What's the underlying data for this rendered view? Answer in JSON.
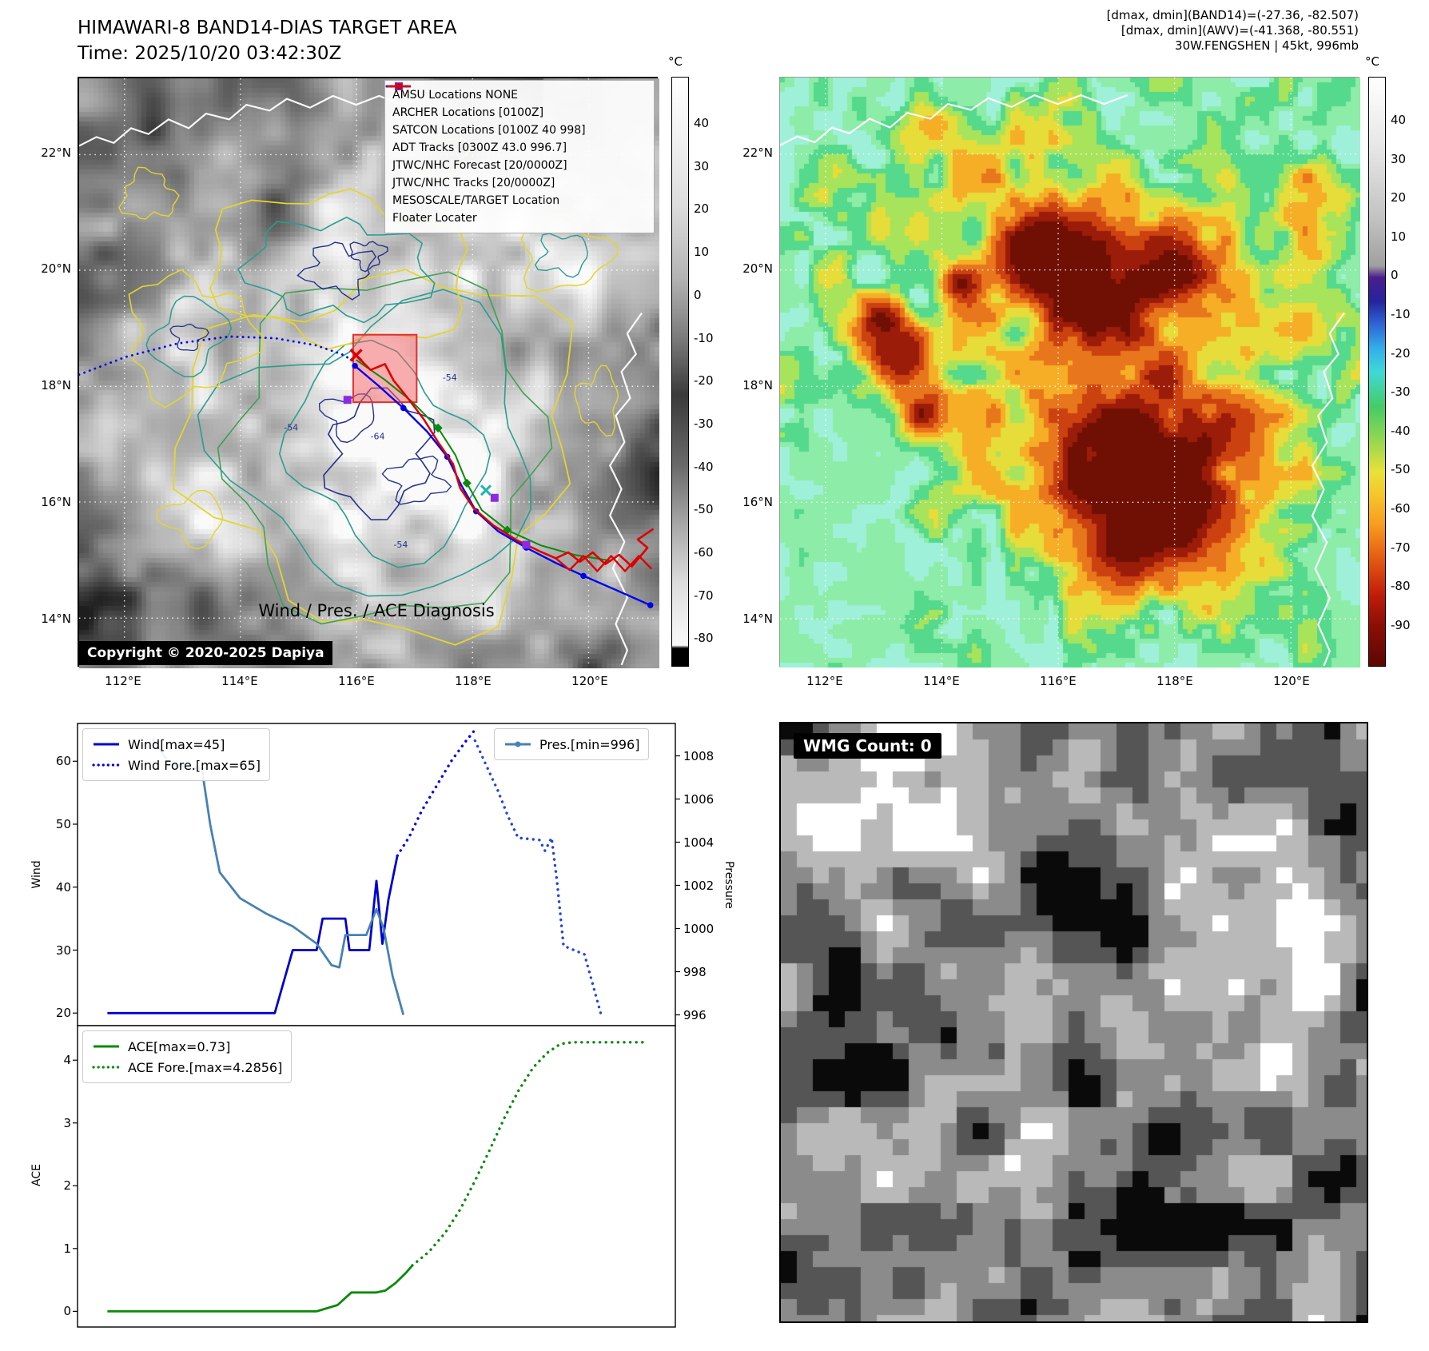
{
  "header": {
    "title": "HIMAWARI-8 BAND14-DIAS TARGET AREA",
    "time_line": "Time: 2025/10/20 03:42:30Z",
    "info_line1": "[dmax, dmin](BAND14)=(-27.36, -82.507)",
    "info_line2": "[dmax, dmin](AWV)=(-41.368, -80.551)",
    "info_line3": "30W.FENGSHEN | 45kt, 996mb"
  },
  "map_left": {
    "legend_items": [
      {
        "label": "AMSU Locations NONE",
        "marker": "square",
        "color": "#cc00cc"
      },
      {
        "label": "ARCHER Locations [0100Z]",
        "marker": "square",
        "color": "#8a2be2"
      },
      {
        "label": "SATCON Locations [0100Z 40 998]",
        "marker": "x",
        "color": "#20b2aa"
      },
      {
        "label": "ADT Tracks [0300Z 43.0 996.7]",
        "marker": "line",
        "color": "#0a8a0a"
      },
      {
        "label": "JTWC/NHC Forecast [20/0000Z]",
        "marker": "dotted",
        "color": "#0000ee"
      },
      {
        "label": "JTWC/NHC Tracks [20/0000Z]",
        "marker": "line-dot",
        "color": "#0000ee"
      },
      {
        "label": "MESOSCALE/TARGET Location",
        "marker": "x",
        "color": "#e00000"
      },
      {
        "label": "Floater Locater",
        "marker": "line",
        "color": "#e00000"
      }
    ],
    "copyright": "Copyright © 2020-2025 Dapiya",
    "lat_labels": [
      "22°N",
      "20°N",
      "18°N",
      "16°N",
      "14°N"
    ],
    "lon_labels": [
      "112°E",
      "114°E",
      "116°E",
      "118°E",
      "120°E"
    ],
    "colorbar": {
      "unit": "°C",
      "ticks": [
        "40",
        "30",
        "20",
        "10",
        "0",
        "-10",
        "-20",
        "-30",
        "-40",
        "-50",
        "-60",
        "-70",
        "-80"
      ]
    },
    "contour_labels": [
      "-54",
      "-64"
    ]
  },
  "map_right": {
    "lat_labels": [
      "22°N",
      "20°N",
      "18°N",
      "16°N",
      "14°N"
    ],
    "lon_labels": [
      "112°E",
      "114°E",
      "116°E",
      "118°E",
      "120°E"
    ],
    "colorbar": {
      "unit": "°C",
      "ticks": [
        "40",
        "30",
        "20",
        "10",
        "0",
        "-10",
        "-20",
        "-30",
        "-40",
        "-50",
        "-60",
        "-70",
        "-80",
        "-90"
      ]
    }
  },
  "diagnosis": {
    "title": "Wind / Pres. / ACE Diagnosis"
  },
  "wmg": {
    "count_label": "WMG Count: 0"
  },
  "colors": {
    "track_red": "#dd0000",
    "track_blue": "#0000ee",
    "adt_green": "#0a8a0a",
    "contour_yellow": "#e3d52e",
    "contour_teal": "#2a9d8f",
    "contour_navy": "#25308a",
    "contour_green": "#3fa050",
    "target_fill": "rgba(244,96,96,0.5)",
    "archer_purple": "#8a2be2",
    "satcon_teal": "#20b2aa"
  },
  "chart_data": [
    {
      "type": "line",
      "title": "Wind / Pres. / ACE Diagnosis",
      "x_lim": [
        0,
        1
      ],
      "grid": false,
      "y_left": {
        "label": "Wind",
        "lim": [
          18,
          66
        ],
        "ticks": [
          20,
          30,
          40,
          50,
          60
        ]
      },
      "y_right": {
        "label": "Pressure",
        "lim": [
          995.5,
          1009.5
        ],
        "ticks": [
          996,
          998,
          1000,
          1002,
          1004,
          1006,
          1008
        ]
      },
      "series": [
        {
          "name": "Wind[max=45]",
          "legend_group": "wind",
          "axis": "left",
          "style": "solid",
          "color": "#0000cd",
          "points": [
            [
              0.05,
              20
            ],
            [
              0.33,
              20
            ],
            [
              0.36,
              30
            ],
            [
              0.4,
              30
            ],
            [
              0.41,
              35
            ],
            [
              0.448,
              35
            ],
            [
              0.455,
              30
            ],
            [
              0.488,
              30
            ],
            [
              0.5,
              41
            ],
            [
              0.51,
              31
            ],
            [
              0.52,
              38
            ],
            [
              0.535,
              45
            ]
          ]
        },
        {
          "name": "Wind Fore.[max=65]",
          "legend_group": "wind",
          "axis": "left",
          "style": "dotted",
          "color": "#0000ee",
          "points": [
            [
              0.535,
              45
            ],
            [
              0.555,
              48
            ],
            [
              0.575,
              52
            ],
            [
              0.6,
              56
            ],
            [
              0.625,
              60
            ],
            [
              0.648,
              63
            ],
            [
              0.665,
              65
            ]
          ]
        },
        {
          "name": "Pres.[min=996]",
          "legend_group": "pres",
          "axis": "right",
          "style": "solid",
          "color": "#4682b4",
          "points": [
            [
              0.125,
              1008.8
            ],
            [
              0.155,
              1007.6
            ],
            [
              0.208,
              1007.4
            ],
            [
              0.222,
              1004.8
            ],
            [
              0.238,
              1002.6
            ],
            [
              0.272,
              1001.4
            ],
            [
              0.315,
              1000.7
            ],
            [
              0.36,
              1000.1
            ],
            [
              0.4,
              999.3
            ],
            [
              0.425,
              998.3
            ],
            [
              0.438,
              998.2
            ],
            [
              0.448,
              999.7
            ],
            [
              0.483,
              999.7
            ],
            [
              0.5,
              1000.9
            ],
            [
              0.512,
              1000.0
            ],
            [
              0.527,
              997.8
            ],
            [
              0.545,
              996.0
            ]
          ]
        },
        {
          "name": "Pres. forecast (dotted, unlabeled)",
          "legend_group": "none",
          "axis": "right",
          "style": "dotted",
          "color": "#2244dd",
          "points": [
            [
              0.665,
              1008.7
            ],
            [
              0.688,
              1007.3
            ],
            [
              0.703,
              1006.4
            ],
            [
              0.72,
              1005.2
            ],
            [
              0.737,
              1004.2
            ],
            [
              0.773,
              1004.1
            ],
            [
              0.782,
              1003.6
            ],
            [
              0.793,
              1004.2
            ],
            [
              0.802,
              1002.2
            ],
            [
              0.813,
              999.2
            ],
            [
              0.848,
              998.8
            ],
            [
              0.862,
              997.4
            ],
            [
              0.876,
              996.0
            ]
          ]
        }
      ]
    },
    {
      "type": "line",
      "x_lim": [
        0,
        1
      ],
      "grid": false,
      "y_left": {
        "label": "ACE",
        "lim": [
          -0.25,
          4.55
        ],
        "ticks": [
          0,
          1,
          2,
          3,
          4
        ]
      },
      "series": [
        {
          "name": "ACE[max=0.73]",
          "legend_group": "ace",
          "axis": "left",
          "style": "solid",
          "color": "#0a8a0a",
          "points": [
            [
              0.05,
              0
            ],
            [
              0.4,
              0
            ],
            [
              0.435,
              0.1
            ],
            [
              0.458,
              0.3
            ],
            [
              0.5,
              0.3
            ],
            [
              0.515,
              0.33
            ],
            [
              0.532,
              0.45
            ],
            [
              0.55,
              0.62
            ],
            [
              0.56,
              0.73
            ]
          ]
        },
        {
          "name": "ACE Fore.[max=4.2856]",
          "legend_group": "ace",
          "axis": "left",
          "style": "dotted",
          "color": "#0a8a0a",
          "points": [
            [
              0.56,
              0.73
            ],
            [
              0.588,
              0.95
            ],
            [
              0.615,
              1.25
            ],
            [
              0.64,
              1.62
            ],
            [
              0.665,
              2.08
            ],
            [
              0.69,
              2.58
            ],
            [
              0.714,
              3.08
            ],
            [
              0.738,
              3.52
            ],
            [
              0.762,
              3.88
            ],
            [
              0.786,
              4.12
            ],
            [
              0.808,
              4.26
            ],
            [
              0.828,
              4.2856
            ],
            [
              0.87,
              4.2856
            ],
            [
              0.948,
              4.2856
            ]
          ]
        }
      ]
    }
  ]
}
